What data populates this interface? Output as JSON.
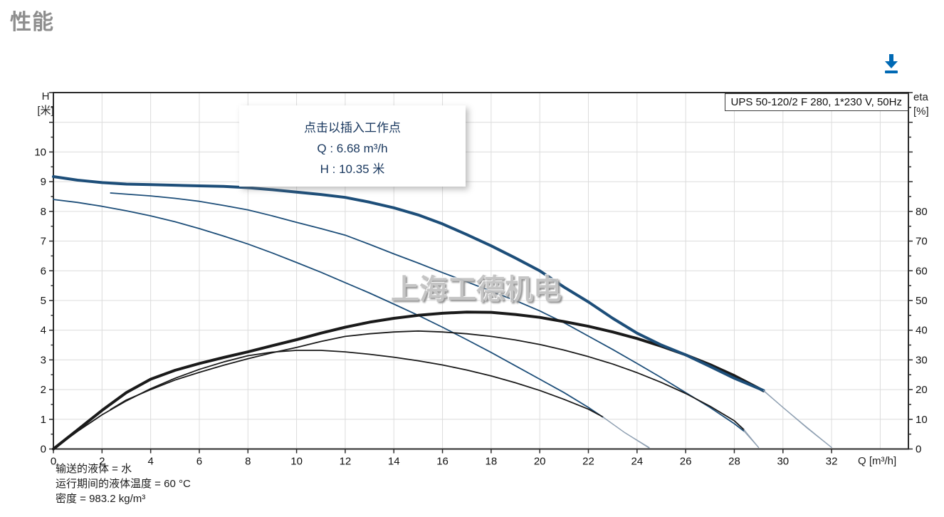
{
  "page": {
    "title": "性能"
  },
  "toolbar": {
    "download_icon": "download-arrow"
  },
  "curve_panel": {
    "tooltip": {
      "line1": "点击以插入工作点",
      "line2": "Q : 6.68 m³/h",
      "line3": "H : 10.35 米"
    },
    "watermark": "上海工德机电",
    "footer_lines": [
      "输送的液体 = 水",
      "运行期间的液体温度 = 60 °C",
      "密度 = 983.2 kg/m³"
    ]
  },
  "chart_data": {
    "type": "line",
    "legend": "UPS 50-120/2 F 280, 1*230 V, 50Hz",
    "grid": true,
    "x_axis": {
      "unit_label": "Q [m³/h]",
      "min": 0,
      "max": 35.2,
      "grid_step": 2,
      "tick_labels": [
        0,
        2,
        4,
        6,
        8,
        10,
        12,
        14,
        16,
        18,
        20,
        22,
        24,
        26,
        28,
        30,
        32
      ]
    },
    "y_left": {
      "name": "H",
      "unit": "[米]",
      "min": 0,
      "max": 12,
      "major_step": 1,
      "minor_step": 0.5,
      "tick_labels": [
        0,
        1,
        2,
        3,
        4,
        5,
        6,
        7,
        8,
        9,
        10
      ]
    },
    "y_right": {
      "name": "eta",
      "unit": "[%]",
      "min": 0,
      "max": 120,
      "major_step": 10,
      "minor_step": 5,
      "tick_labels": [
        0,
        10,
        20,
        30,
        40,
        50,
        60,
        70,
        80
      ]
    },
    "colors": {
      "curve_blue": "#1d4e79",
      "curve_black": "#1a1a1a",
      "extension_gray": "#8fa0b2",
      "grid": "#dcdcdc",
      "axis": "#2b2b2b"
    },
    "series": [
      {
        "name": "head-speed1",
        "axis": "H",
        "role": "curve",
        "color": "#1d4e79",
        "emphasis": "thin",
        "points": [
          [
            0,
            8.4
          ],
          [
            1,
            8.3
          ],
          [
            2,
            8.17
          ],
          [
            3,
            8.02
          ],
          [
            4,
            7.85
          ],
          [
            5,
            7.65
          ],
          [
            6,
            7.42
          ],
          [
            7,
            7.17
          ],
          [
            8,
            6.9
          ],
          [
            9,
            6.6
          ],
          [
            10,
            6.28
          ],
          [
            11,
            5.95
          ],
          [
            12,
            5.6
          ],
          [
            13,
            5.25
          ],
          [
            14,
            4.88
          ],
          [
            15,
            4.5
          ],
          [
            16,
            4.1
          ],
          [
            17,
            3.68
          ],
          [
            18,
            3.25
          ],
          [
            19,
            2.8
          ],
          [
            20,
            2.35
          ],
          [
            21,
            1.9
          ],
          [
            22,
            1.4
          ],
          [
            22.6,
            1.07
          ]
        ]
      },
      {
        "name": "head-speed1-extension",
        "axis": "H",
        "role": "extension",
        "color": "#8fa0b2",
        "emphasis": "extension",
        "points": [
          [
            22.6,
            1.07
          ],
          [
            23.5,
            0.55
          ],
          [
            24.5,
            0.05
          ]
        ]
      },
      {
        "name": "eta-speed1",
        "axis": "eta",
        "role": "curve",
        "color": "#1a1a1a",
        "emphasis": "thin",
        "points": [
          [
            0,
            0
          ],
          [
            1,
            6
          ],
          [
            2,
            11.5
          ],
          [
            3,
            16.2
          ],
          [
            4,
            20.3
          ],
          [
            5,
            23.8
          ],
          [
            6,
            26.8
          ],
          [
            7,
            29.3
          ],
          [
            8,
            31.4
          ],
          [
            9,
            32.6
          ],
          [
            10,
            33.2
          ],
          [
            11,
            33.2
          ],
          [
            12,
            32.7
          ],
          [
            13,
            31.9
          ],
          [
            14,
            30.9
          ],
          [
            15,
            29.7
          ],
          [
            16,
            28.3
          ],
          [
            17,
            26.6
          ],
          [
            18,
            24.6
          ],
          [
            19,
            22.3
          ],
          [
            20,
            19.7
          ],
          [
            21,
            16.7
          ],
          [
            22,
            13.4
          ],
          [
            22.6,
            10.8
          ]
        ]
      },
      {
        "name": "eta-speed1-extension",
        "axis": "eta",
        "role": "extension",
        "color": "#8fa0b2",
        "emphasis": "extension",
        "points": [
          [
            22.6,
            10.8
          ],
          [
            23.5,
            5.5
          ],
          [
            24.5,
            0.3
          ]
        ]
      },
      {
        "name": "head-speed2",
        "axis": "H",
        "role": "curve",
        "color": "#1d4e79",
        "emphasis": "thin",
        "points": [
          [
            2.35,
            8.62
          ],
          [
            3,
            8.58
          ],
          [
            4,
            8.52
          ],
          [
            5,
            8.44
          ],
          [
            6,
            8.34
          ],
          [
            7,
            8.2
          ],
          [
            8,
            8.05
          ],
          [
            9,
            7.85
          ],
          [
            10,
            7.63
          ],
          [
            11,
            7.42
          ],
          [
            12,
            7.2
          ],
          [
            13,
            6.89
          ],
          [
            14,
            6.57
          ],
          [
            15,
            6.26
          ],
          [
            16,
            5.94
          ],
          [
            17,
            5.63
          ],
          [
            18,
            5.31
          ],
          [
            19,
            5.0
          ],
          [
            20,
            4.65
          ],
          [
            21,
            4.25
          ],
          [
            22,
            3.8
          ],
          [
            23,
            3.35
          ],
          [
            24,
            2.88
          ],
          [
            25,
            2.4
          ],
          [
            26,
            1.9
          ],
          [
            27,
            1.4
          ],
          [
            28,
            0.85
          ],
          [
            28.4,
            0.6
          ]
        ]
      },
      {
        "name": "head-speed2-extension",
        "axis": "H",
        "role": "extension",
        "color": "#8fa0b2",
        "emphasis": "extension",
        "points": [
          [
            28.4,
            0.6
          ],
          [
            29,
            0.05
          ]
        ]
      },
      {
        "name": "eta-speed2",
        "axis": "eta",
        "role": "curve",
        "color": "#1a1a1a",
        "emphasis": "thin",
        "points": [
          [
            2.35,
            13.3
          ],
          [
            3,
            16.5
          ],
          [
            4,
            20
          ],
          [
            5,
            23.2
          ],
          [
            6,
            25.8
          ],
          [
            7,
            28.2
          ],
          [
            8,
            30.4
          ],
          [
            9,
            32.4
          ],
          [
            10,
            34.2
          ],
          [
            11,
            36.2
          ],
          [
            12,
            37.9
          ],
          [
            13,
            38.8
          ],
          [
            14,
            39.4
          ],
          [
            15,
            39.7
          ],
          [
            16,
            39.4
          ],
          [
            17,
            38.8
          ],
          [
            18,
            37.9
          ],
          [
            19,
            36.7
          ],
          [
            20,
            35.2
          ],
          [
            21,
            33.3
          ],
          [
            22,
            31.1
          ],
          [
            23,
            28.6
          ],
          [
            24,
            25.7
          ],
          [
            25,
            22.4
          ],
          [
            26,
            18.7
          ],
          [
            27,
            14.4
          ],
          [
            28,
            9.5
          ],
          [
            28.4,
            6.5
          ]
        ]
      },
      {
        "name": "eta-speed2-extension",
        "axis": "eta",
        "role": "extension",
        "color": "#8fa0b2",
        "emphasis": "extension",
        "points": [
          [
            28.4,
            6.5
          ],
          [
            29,
            0.5
          ]
        ]
      },
      {
        "name": "eta-speed3",
        "axis": "eta",
        "role": "curve",
        "color": "#1a1a1a",
        "emphasis": "thick",
        "points": [
          [
            0,
            0
          ],
          [
            1,
            6.5
          ],
          [
            2,
            13
          ],
          [
            3,
            19
          ],
          [
            4,
            23.5
          ],
          [
            5,
            26.5
          ],
          [
            6,
            28.8
          ],
          [
            7,
            30.8
          ],
          [
            8,
            32.7
          ],
          [
            9,
            34.8
          ],
          [
            10,
            36.8
          ],
          [
            11,
            39
          ],
          [
            12,
            41
          ],
          [
            13,
            42.7
          ],
          [
            14,
            44
          ],
          [
            15,
            45
          ],
          [
            16,
            45.7
          ],
          [
            17,
            46.1
          ],
          [
            18,
            46
          ],
          [
            19,
            45.3
          ],
          [
            20,
            44.3
          ],
          [
            21,
            42.9
          ],
          [
            22,
            41.3
          ],
          [
            23,
            39.4
          ],
          [
            24,
            37.2
          ],
          [
            25,
            34.6
          ],
          [
            26,
            31.7
          ],
          [
            27,
            28.4
          ],
          [
            28,
            24.7
          ],
          [
            29.2,
            19.6
          ]
        ]
      },
      {
        "name": "eta-speed3-extension",
        "axis": "eta",
        "role": "extension",
        "color": "#8fa0b2",
        "emphasis": "extension",
        "points": [
          [
            29.2,
            19.6
          ],
          [
            30,
            14
          ],
          [
            31,
            7
          ],
          [
            32,
            0.5
          ]
        ]
      },
      {
        "name": "head-speed3",
        "axis": "H",
        "role": "curve",
        "color": "#1d4e79",
        "emphasis": "thick",
        "points": [
          [
            0,
            9.17
          ],
          [
            1,
            9.05
          ],
          [
            2,
            8.97
          ],
          [
            3,
            8.92
          ],
          [
            4,
            8.9
          ],
          [
            5,
            8.88
          ],
          [
            6,
            8.86
          ],
          [
            7,
            8.84
          ],
          [
            8,
            8.8
          ],
          [
            9,
            8.73
          ],
          [
            10,
            8.65
          ],
          [
            11,
            8.57
          ],
          [
            12,
            8.47
          ],
          [
            13,
            8.31
          ],
          [
            14,
            8.12
          ],
          [
            15,
            7.88
          ],
          [
            16,
            7.58
          ],
          [
            17,
            7.22
          ],
          [
            18,
            6.84
          ],
          [
            19,
            6.43
          ],
          [
            20,
            6.0
          ],
          [
            21,
            5.45
          ],
          [
            22,
            4.95
          ],
          [
            23,
            4.4
          ],
          [
            24,
            3.9
          ],
          [
            25,
            3.5
          ],
          [
            26,
            3.17
          ],
          [
            27,
            2.78
          ],
          [
            28,
            2.38
          ],
          [
            29.2,
            1.97
          ]
        ]
      },
      {
        "name": "head-speed3-extension",
        "axis": "H",
        "role": "extension",
        "color": "#8fa0b2",
        "emphasis": "extension",
        "points": [
          [
            29.2,
            1.97
          ],
          [
            30,
            1.4
          ],
          [
            31,
            0.72
          ],
          [
            32,
            0.05
          ]
        ]
      }
    ]
  }
}
